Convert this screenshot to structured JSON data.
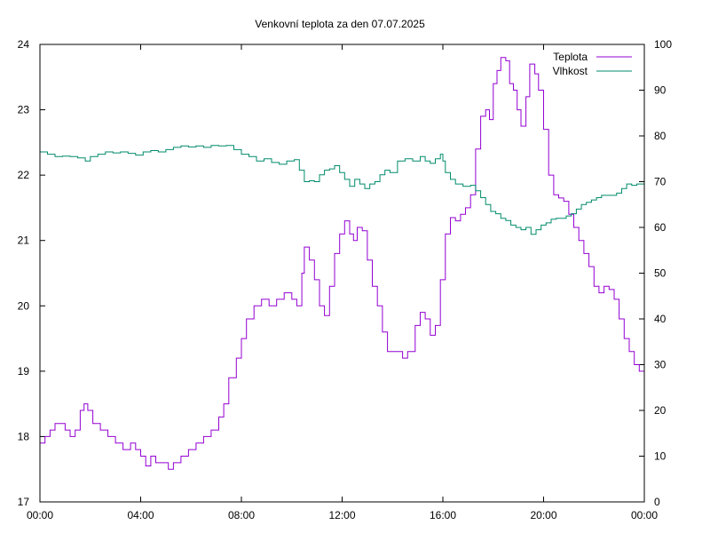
{
  "chart_data": {
    "type": "line",
    "title": "Venkovní teplota za den 07.07.2025",
    "legend_position": "top-right",
    "grid": false,
    "x_axis": {
      "ticks": [
        "00:00",
        "04:00",
        "08:00",
        "12:00",
        "16:00",
        "20:00",
        "00:00"
      ],
      "range_hours": [
        0,
        24
      ]
    },
    "y_axis_left": {
      "ylim": [
        17,
        24
      ],
      "ticks": [
        "17",
        "18",
        "19",
        "20",
        "21",
        "22",
        "23",
        "24"
      ]
    },
    "y_axis_right": {
      "ylim": [
        0,
        100
      ],
      "ticks": [
        "0",
        "10",
        "20",
        "30",
        "40",
        "50",
        "60",
        "70",
        "80",
        "90",
        "100"
      ]
    },
    "series": [
      {
        "name": "Teplota",
        "axis": "left",
        "color": "#9400d3",
        "points": [
          [
            0.0,
            17.9
          ],
          [
            0.2,
            18.0
          ],
          [
            0.4,
            18.1
          ],
          [
            0.6,
            18.2
          ],
          [
            0.8,
            18.2
          ],
          [
            1.0,
            18.1
          ],
          [
            1.2,
            18.0
          ],
          [
            1.4,
            18.1
          ],
          [
            1.6,
            18.4
          ],
          [
            1.75,
            18.5
          ],
          [
            1.9,
            18.4
          ],
          [
            2.1,
            18.2
          ],
          [
            2.4,
            18.1
          ],
          [
            2.7,
            18.0
          ],
          [
            3.0,
            17.9
          ],
          [
            3.3,
            17.8
          ],
          [
            3.6,
            17.9
          ],
          [
            3.8,
            17.8
          ],
          [
            4.0,
            17.7
          ],
          [
            4.2,
            17.55
          ],
          [
            4.4,
            17.7
          ],
          [
            4.6,
            17.6
          ],
          [
            4.9,
            17.6
          ],
          [
            5.1,
            17.5
          ],
          [
            5.3,
            17.6
          ],
          [
            5.6,
            17.7
          ],
          [
            5.9,
            17.8
          ],
          [
            6.2,
            17.9
          ],
          [
            6.5,
            18.0
          ],
          [
            6.8,
            18.1
          ],
          [
            7.1,
            18.3
          ],
          [
            7.3,
            18.5
          ],
          [
            7.5,
            18.9
          ],
          [
            7.8,
            19.2
          ],
          [
            8.0,
            19.5
          ],
          [
            8.2,
            19.8
          ],
          [
            8.5,
            20.0
          ],
          [
            8.8,
            20.1
          ],
          [
            9.1,
            20.0
          ],
          [
            9.4,
            20.1
          ],
          [
            9.7,
            20.2
          ],
          [
            10.0,
            20.1
          ],
          [
            10.2,
            20.0
          ],
          [
            10.4,
            20.5
          ],
          [
            10.5,
            20.9
          ],
          [
            10.7,
            20.7
          ],
          [
            10.9,
            20.4
          ],
          [
            11.1,
            20.0
          ],
          [
            11.3,
            19.85
          ],
          [
            11.5,
            20.3
          ],
          [
            11.7,
            20.8
          ],
          [
            11.9,
            21.1
          ],
          [
            12.1,
            21.3
          ],
          [
            12.3,
            21.1
          ],
          [
            12.45,
            21.0
          ],
          [
            12.6,
            21.2
          ],
          [
            12.8,
            21.15
          ],
          [
            13.0,
            20.7
          ],
          [
            13.2,
            20.3
          ],
          [
            13.4,
            20.0
          ],
          [
            13.6,
            19.6
          ],
          [
            13.8,
            19.3
          ],
          [
            14.1,
            19.3
          ],
          [
            14.4,
            19.2
          ],
          [
            14.6,
            19.3
          ],
          [
            14.9,
            19.7
          ],
          [
            15.1,
            19.9
          ],
          [
            15.3,
            19.8
          ],
          [
            15.5,
            19.55
          ],
          [
            15.7,
            19.7
          ],
          [
            15.9,
            20.4
          ],
          [
            16.1,
            21.1
          ],
          [
            16.3,
            21.35
          ],
          [
            16.5,
            21.3
          ],
          [
            16.7,
            21.4
          ],
          [
            16.9,
            21.5
          ],
          [
            17.1,
            21.7
          ],
          [
            17.3,
            22.4
          ],
          [
            17.5,
            22.9
          ],
          [
            17.7,
            23.0
          ],
          [
            17.85,
            22.85
          ],
          [
            18.0,
            23.4
          ],
          [
            18.15,
            23.6
          ],
          [
            18.3,
            23.8
          ],
          [
            18.5,
            23.75
          ],
          [
            18.65,
            23.4
          ],
          [
            18.8,
            23.3
          ],
          [
            18.95,
            23.0
          ],
          [
            19.1,
            22.75
          ],
          [
            19.3,
            23.2
          ],
          [
            19.45,
            23.7
          ],
          [
            19.65,
            23.55
          ],
          [
            19.8,
            23.3
          ],
          [
            20.0,
            22.7
          ],
          [
            20.2,
            22.0
          ],
          [
            20.4,
            21.7
          ],
          [
            20.6,
            21.65
          ],
          [
            20.8,
            21.6
          ],
          [
            21.0,
            21.4
          ],
          [
            21.2,
            21.2
          ],
          [
            21.4,
            21.0
          ],
          [
            21.6,
            20.8
          ],
          [
            21.8,
            20.6
          ],
          [
            22.0,
            20.3
          ],
          [
            22.2,
            20.2
          ],
          [
            22.4,
            20.3
          ],
          [
            22.6,
            20.25
          ],
          [
            22.8,
            20.1
          ],
          [
            23.0,
            19.8
          ],
          [
            23.2,
            19.5
          ],
          [
            23.4,
            19.3
          ],
          [
            23.6,
            19.1
          ],
          [
            23.8,
            19.0
          ],
          [
            24.0,
            18.9
          ]
        ]
      },
      {
        "name": "Vlhkost",
        "axis": "right",
        "color": "#008b6b",
        "points": [
          [
            0.0,
            76.5
          ],
          [
            0.3,
            76.0
          ],
          [
            0.6,
            75.5
          ],
          [
            0.9,
            75.6
          ],
          [
            1.2,
            75.5
          ],
          [
            1.5,
            75.2
          ],
          [
            1.8,
            74.5
          ],
          [
            2.0,
            75.5
          ],
          [
            2.3,
            76.0
          ],
          [
            2.6,
            76.5
          ],
          [
            2.9,
            76.3
          ],
          [
            3.2,
            76.5
          ],
          [
            3.5,
            76.2
          ],
          [
            3.8,
            75.8
          ],
          [
            4.1,
            76.5
          ],
          [
            4.4,
            76.8
          ],
          [
            4.7,
            76.5
          ],
          [
            5.0,
            77.0
          ],
          [
            5.3,
            77.5
          ],
          [
            5.6,
            77.8
          ],
          [
            5.9,
            77.6
          ],
          [
            6.2,
            77.8
          ],
          [
            6.5,
            77.5
          ],
          [
            6.8,
            77.9
          ],
          [
            7.1,
            77.8
          ],
          [
            7.4,
            77.9
          ],
          [
            7.7,
            77.0
          ],
          [
            8.0,
            76.0
          ],
          [
            8.3,
            75.5
          ],
          [
            8.6,
            74.5
          ],
          [
            8.9,
            75.0
          ],
          [
            9.2,
            74.2
          ],
          [
            9.5,
            73.8
          ],
          [
            9.8,
            74.5
          ],
          [
            10.1,
            74.8
          ],
          [
            10.3,
            72.5
          ],
          [
            10.5,
            70.0
          ],
          [
            10.7,
            70.2
          ],
          [
            10.9,
            70.0
          ],
          [
            11.1,
            71.5
          ],
          [
            11.3,
            72.5
          ],
          [
            11.5,
            72.8
          ],
          [
            11.7,
            73.5
          ],
          [
            11.9,
            72.0
          ],
          [
            12.1,
            70.5
          ],
          [
            12.3,
            69.0
          ],
          [
            12.5,
            70.5
          ],
          [
            12.7,
            69.5
          ],
          [
            12.9,
            68.5
          ],
          [
            13.1,
            69.5
          ],
          [
            13.3,
            70.0
          ],
          [
            13.5,
            71.5
          ],
          [
            13.7,
            72.5
          ],
          [
            13.9,
            72.0
          ],
          [
            14.2,
            74.5
          ],
          [
            14.5,
            75.0
          ],
          [
            14.8,
            74.5
          ],
          [
            15.1,
            75.5
          ],
          [
            15.3,
            74.5
          ],
          [
            15.5,
            74.0
          ],
          [
            15.7,
            75.0
          ],
          [
            15.9,
            76.0
          ],
          [
            16.0,
            74.5
          ],
          [
            16.1,
            72.0
          ],
          [
            16.3,
            70.5
          ],
          [
            16.5,
            69.5
          ],
          [
            16.8,
            69.0
          ],
          [
            17.1,
            69.2
          ],
          [
            17.3,
            68.0
          ],
          [
            17.5,
            66.5
          ],
          [
            17.7,
            65.0
          ],
          [
            17.9,
            63.5
          ],
          [
            18.1,
            63.0
          ],
          [
            18.3,
            62.0
          ],
          [
            18.5,
            61.5
          ],
          [
            18.7,
            60.5
          ],
          [
            18.9,
            60.0
          ],
          [
            19.1,
            59.5
          ],
          [
            19.3,
            60.0
          ],
          [
            19.5,
            58.5
          ],
          [
            19.7,
            59.5
          ],
          [
            19.9,
            60.5
          ],
          [
            20.1,
            61.0
          ],
          [
            20.3,
            61.8
          ],
          [
            20.5,
            62.0
          ],
          [
            20.7,
            62.0
          ],
          [
            20.9,
            62.5
          ],
          [
            21.1,
            63.0
          ],
          [
            21.3,
            64.0
          ],
          [
            21.5,
            65.0
          ],
          [
            21.7,
            65.5
          ],
          [
            21.9,
            66.0
          ],
          [
            22.1,
            66.5
          ],
          [
            22.3,
            67.0
          ],
          [
            22.5,
            67.0
          ],
          [
            22.7,
            67.0
          ],
          [
            22.9,
            67.5
          ],
          [
            23.1,
            68.5
          ],
          [
            23.3,
            69.5
          ],
          [
            23.5,
            69.2
          ],
          [
            23.7,
            69.5
          ],
          [
            24.0,
            70.5
          ]
        ]
      }
    ]
  }
}
